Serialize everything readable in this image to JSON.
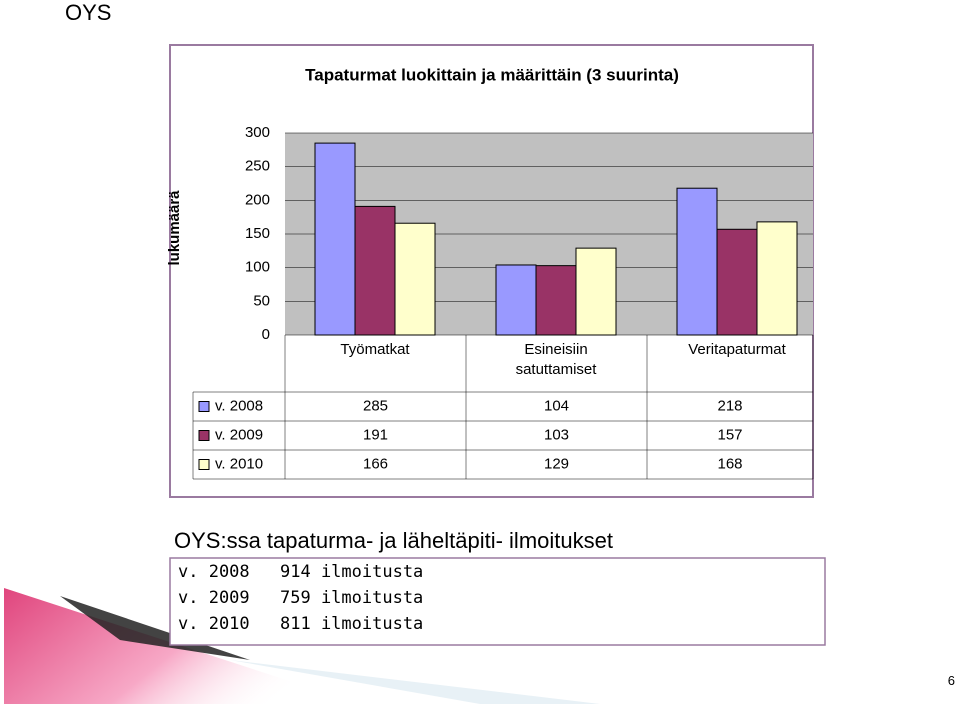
{
  "header": "OYS",
  "chart_data": {
    "type": "bar",
    "title": "Tapaturmat luokittain ja määrittäin (3 suurinta)",
    "y_label": "lukumäärä",
    "categories": [
      "Työmatkat",
      "Esineisiin satuttamiset",
      "Veritapaturmat"
    ],
    "series": [
      {
        "name": "v. 2008",
        "color": "#9999ff",
        "values": [
          285,
          104,
          218
        ]
      },
      {
        "name": "v. 2009",
        "color": "#993366",
        "values": [
          191,
          103,
          157
        ]
      },
      {
        "name": "v. 2010",
        "color": "#ffffcc",
        "values": [
          166,
          129,
          168
        ]
      }
    ],
    "ylim": [
      0,
      300
    ],
    "yticks": [
      0,
      50,
      100,
      150,
      200,
      250,
      300
    ],
    "grid": true,
    "data_table": true
  },
  "summary": {
    "title": "OYS:ssa tapaturma- ja läheltäpiti- ilmoitukset",
    "rows": [
      {
        "year": "v. 2008",
        "text": "914 ilmoitusta"
      },
      {
        "year": "v. 2009",
        "text": "759 ilmoitusta"
      },
      {
        "year": "v. 2010",
        "text": "811 ilmoitusta"
      }
    ]
  },
  "page_number": "6"
}
